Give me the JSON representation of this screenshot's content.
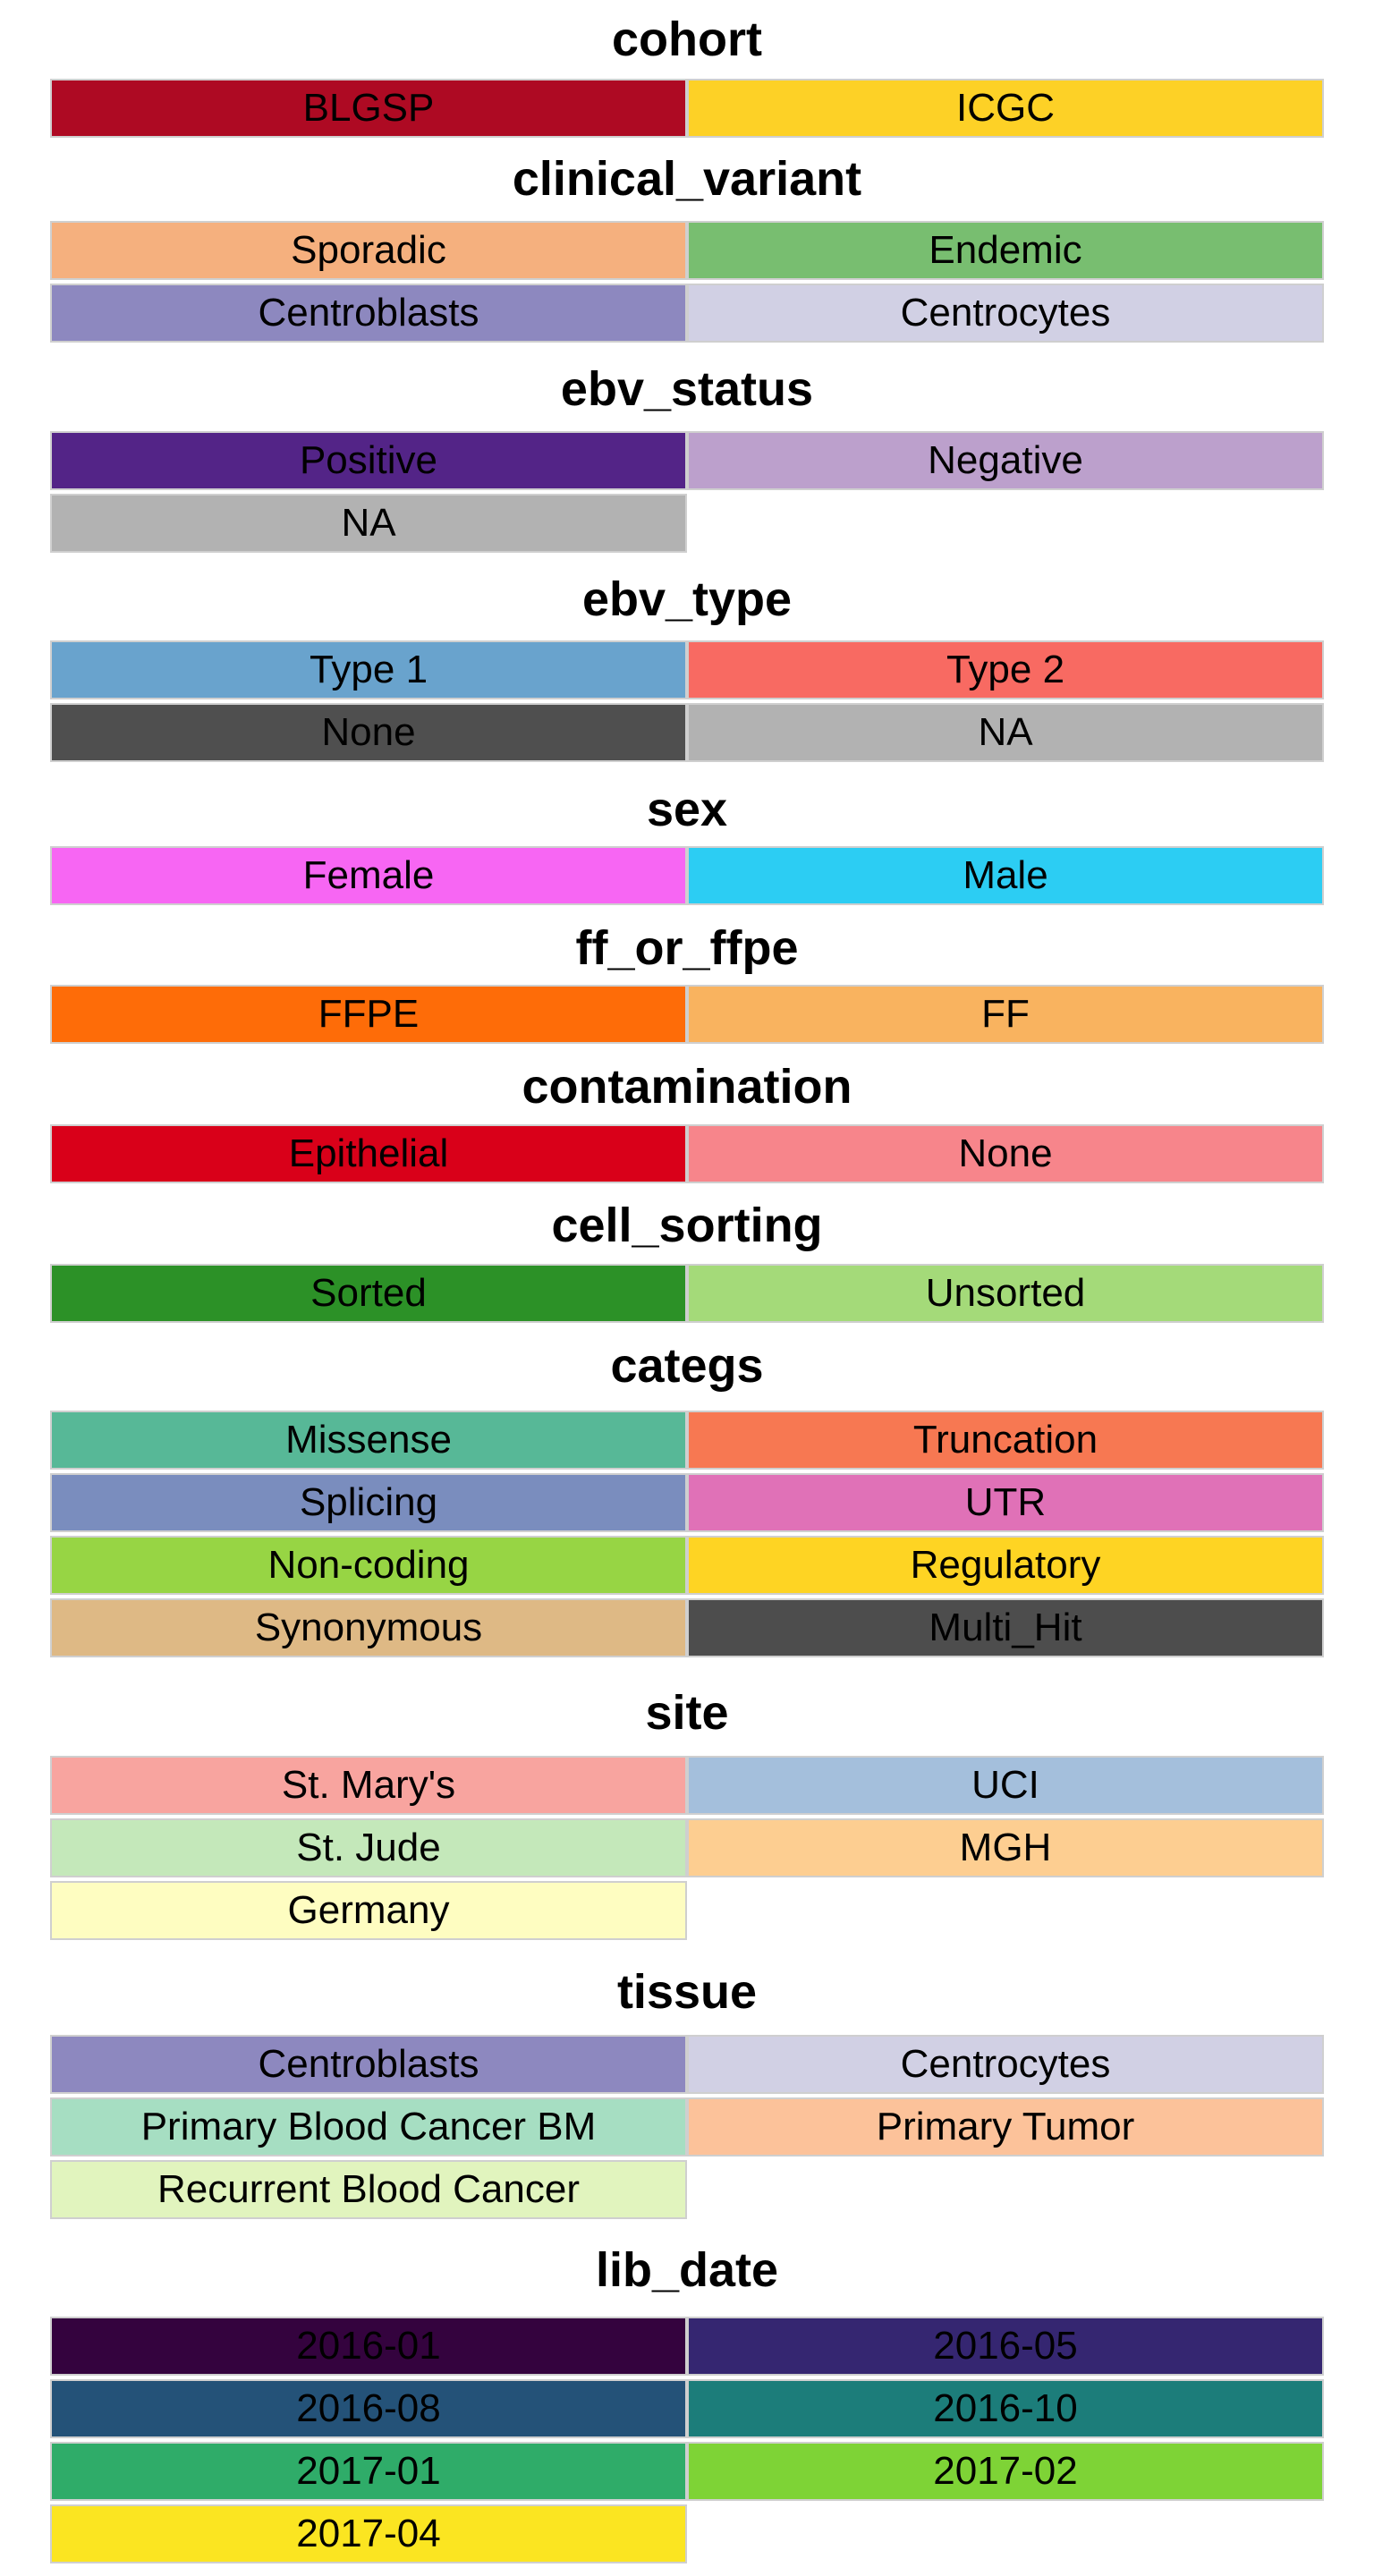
{
  "groups": [
    {
      "title": "cohort",
      "items": [
        {
          "label": "BLGSP",
          "color": "#AE0A23"
        },
        {
          "label": "ICGC",
          "color": "#FDD126"
        }
      ]
    },
    {
      "title": "clinical_variant",
      "items": [
        {
          "label": "Sporadic",
          "color": "#F5B07E"
        },
        {
          "label": "Endemic",
          "color": "#78BE70"
        },
        {
          "label": "Centroblasts",
          "color": "#8D88BF"
        },
        {
          "label": "Centrocytes",
          "color": "#D1D0E4"
        }
      ]
    },
    {
      "title": "ebv_status",
      "items": [
        {
          "label": "Positive",
          "color": "#532487"
        },
        {
          "label": "Negative",
          "color": "#BCA0CC"
        },
        {
          "label": "NA",
          "color": "#B2B2B2"
        }
      ]
    },
    {
      "title": "ebv_type",
      "items": [
        {
          "label": "Type 1",
          "color": "#69A3CD"
        },
        {
          "label": "Type 2",
          "color": "#F86A62"
        },
        {
          "label": "None",
          "color": "#4F4F4F"
        },
        {
          "label": "NA",
          "color": "#B2B2B2"
        }
      ]
    },
    {
      "title": "sex",
      "items": [
        {
          "label": "Female",
          "color": "#F766F3"
        },
        {
          "label": "Male",
          "color": "#2CCDF3"
        }
      ]
    },
    {
      "title": "ff_or_ffpe",
      "items": [
        {
          "label": "FFPE",
          "color": "#FE6C08"
        },
        {
          "label": "FF",
          "color": "#F9B35F"
        }
      ]
    },
    {
      "title": "contamination",
      "items": [
        {
          "label": "Epithelial",
          "color": "#D90019"
        },
        {
          "label": "None",
          "color": "#F7858B"
        }
      ]
    },
    {
      "title": "cell_sorting",
      "items": [
        {
          "label": "Sorted",
          "color": "#2C9127"
        },
        {
          "label": "Unsorted",
          "color": "#A4DA79"
        }
      ]
    },
    {
      "title": "categs",
      "items": [
        {
          "label": "Missense",
          "color": "#57B897"
        },
        {
          "label": "Truncation",
          "color": "#F77852"
        },
        {
          "label": "Splicing",
          "color": "#7A8DBE"
        },
        {
          "label": "UTR",
          "color": "#E071B7"
        },
        {
          "label": "Non-coding",
          "color": "#97D544"
        },
        {
          "label": "Regulatory",
          "color": "#FED423"
        },
        {
          "label": "Synonymous",
          "color": "#DEB985"
        },
        {
          "label": "Multi_Hit",
          "color": "#4D4D4D"
        }
      ]
    },
    {
      "title": "site",
      "items": [
        {
          "label": "St. Mary's",
          "color": "#F8A49F"
        },
        {
          "label": "UCI",
          "color": "#A4BFDC"
        },
        {
          "label": "St. Jude",
          "color": "#C4E8BA"
        },
        {
          "label": "MGH",
          "color": "#FDCE91"
        },
        {
          "label": "Germany",
          "color": "#FEFDC1"
        }
      ]
    },
    {
      "title": "tissue",
      "items": [
        {
          "label": "Centroblasts",
          "color": "#8D88BF"
        },
        {
          "label": "Centrocytes",
          "color": "#D1D0E4"
        },
        {
          "label": "Primary Blood Cancer BM",
          "color": "#A6DEC2"
        },
        {
          "label": "Primary Tumor",
          "color": "#FCC29A"
        },
        {
          "label": "Recurrent Blood Cancer",
          "color": "#E1F4BE"
        }
      ]
    },
    {
      "title": "lib_date",
      "items": [
        {
          "label": "2016-01",
          "color": "#34033E"
        },
        {
          "label": "2016-05",
          "color": "#352671"
        },
        {
          "label": "2016-08",
          "color": "#245278"
        },
        {
          "label": "2016-10",
          "color": "#1C7D7A"
        },
        {
          "label": "2017-01",
          "color": "#2FAC69"
        },
        {
          "label": "2017-02",
          "color": "#7ED336"
        },
        {
          "label": "2017-04",
          "color": "#FBE521"
        }
      ]
    }
  ]
}
